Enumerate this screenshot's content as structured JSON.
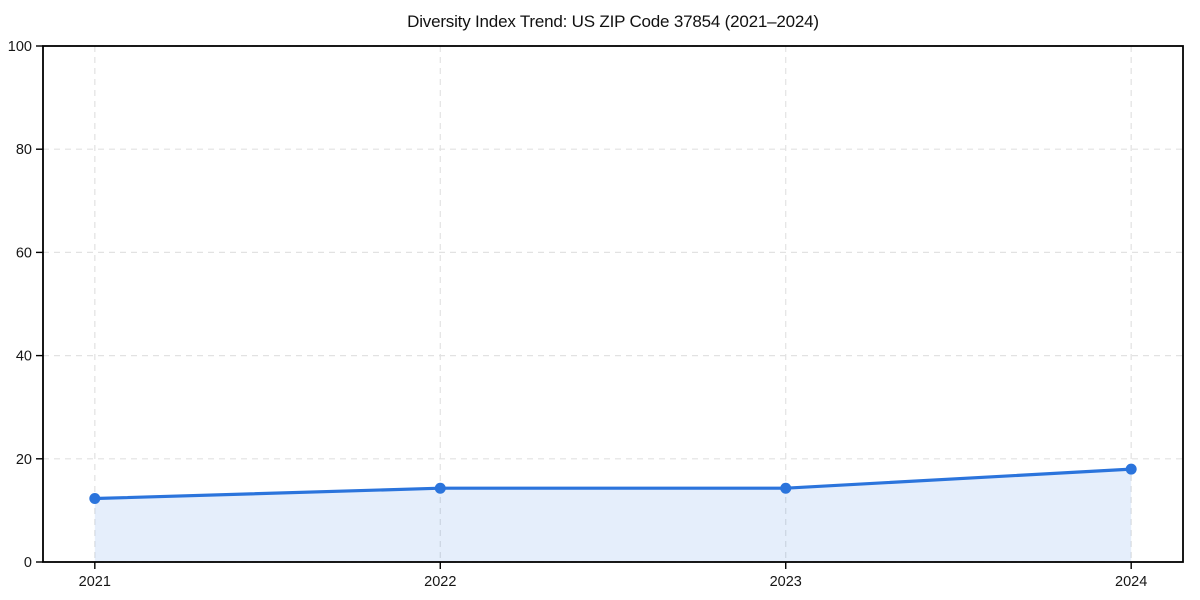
{
  "page": {
    "background": "#ffffff"
  },
  "chart_data": {
    "type": "line",
    "title": "Diversity Index Trend: US ZIP Code 37854 (2021–2024)",
    "categories": [
      "2021",
      "2022",
      "2023",
      "2024"
    ],
    "series": [
      {
        "name": "Diversity Index",
        "values": [
          12.3,
          14.3,
          14.3,
          18.0
        ]
      }
    ],
    "xlabel": "",
    "ylabel": "",
    "ylim": [
      0,
      100
    ],
    "yticks": [
      0,
      20,
      40,
      60,
      80,
      100
    ],
    "grid": "dashed-both-axes",
    "legend_position": "none",
    "area_fill": true,
    "marker": "circle",
    "colors": {
      "line": "#2b74dc",
      "marker": "#2b74dc",
      "area": "#2b74dc",
      "area_opacity": "0.12",
      "grid": "#e2e2e2",
      "axis": "#000000",
      "tick_text": "#161616",
      "title_text": "#111111"
    }
  }
}
